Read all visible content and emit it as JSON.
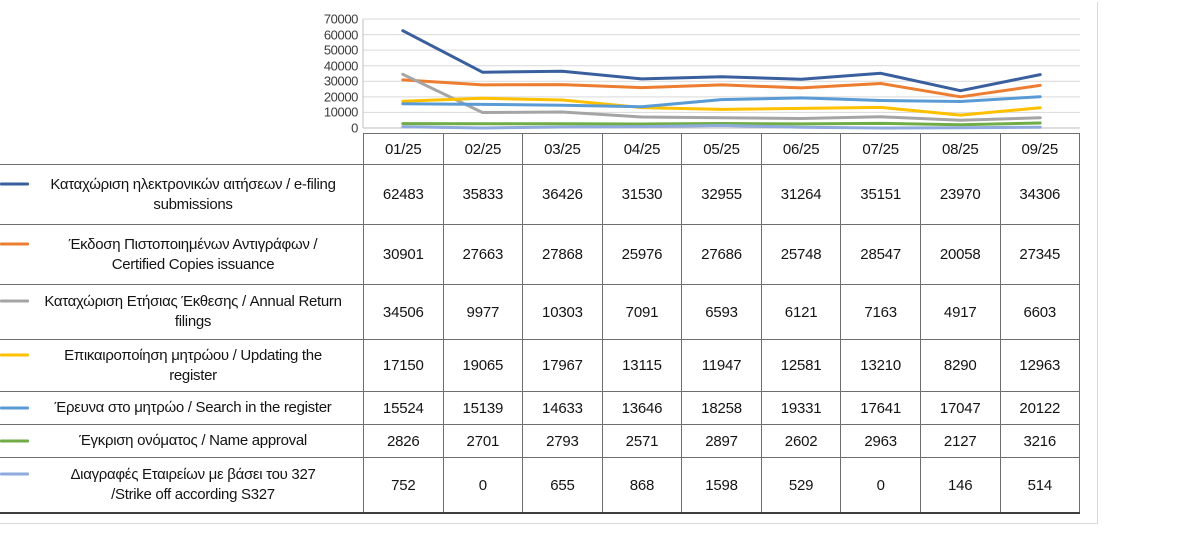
{
  "chart_data": {
    "type": "line",
    "title": "",
    "xlabel": "",
    "ylabel": "",
    "ylim": [
      0,
      70000
    ],
    "yticks": [
      0,
      10000,
      20000,
      30000,
      40000,
      50000,
      60000,
      70000
    ],
    "grid": true,
    "legend_position": "table-left",
    "categories": [
      "01/25",
      "02/25",
      "03/25",
      "04/25",
      "05/25",
      "06/25",
      "07/25",
      "08/25",
      "09/25"
    ],
    "gridline_color": "#d9d9d9",
    "axis_color": "#bfbfbf",
    "series": [
      {
        "label_lines": [
          "Καταχώριση ηλεκτρονικών αιτήσεων / e-filing",
          "submissions"
        ],
        "color": "#3a5f9e",
        "values": [
          62483,
          35833,
          36426,
          31530,
          32955,
          31264,
          35151,
          23970,
          34306
        ]
      },
      {
        "label_lines": [
          "Έκδοση Πιστοποιημένων Αντιγράφων /",
          "Certified Copies issuance"
        ],
        "color": "#ed7d31",
        "values": [
          30901,
          27663,
          27868,
          25976,
          27686,
          25748,
          28547,
          20058,
          27345
        ]
      },
      {
        "label_lines": [
          "Καταχώριση Ετήσιας Έκθεσης / Annual Return",
          "filings"
        ],
        "color": "#a5a5a5",
        "values": [
          34506,
          9977,
          10303,
          7091,
          6593,
          6121,
          7163,
          4917,
          6603
        ]
      },
      {
        "label_lines": [
          "Επικαιροποίηση μητρώου / Updating the",
          "register"
        ],
        "color": "#ffc000",
        "values": [
          17150,
          19065,
          17967,
          13115,
          11947,
          12581,
          13210,
          8290,
          12963
        ]
      },
      {
        "label_lines": [
          "Έρευνα στο μητρώο / Search in the register"
        ],
        "color": "#5b9bd5",
        "values": [
          15524,
          15139,
          14633,
          13646,
          18258,
          19331,
          17641,
          17047,
          20122
        ]
      },
      {
        "label_lines": [
          "Έγκριση ονόματος / Name approval"
        ],
        "color": "#70ad47",
        "values": [
          2826,
          2701,
          2793,
          2571,
          2897,
          2602,
          2963,
          2127,
          3216
        ]
      },
      {
        "label_lines": [
          "Διαγραφές Εταιρείων με  βάσει του 327",
          "/Strike off according S327"
        ],
        "color": "#8faadc",
        "values": [
          752,
          0,
          655,
          868,
          1598,
          529,
          0,
          146,
          514
        ]
      }
    ]
  }
}
